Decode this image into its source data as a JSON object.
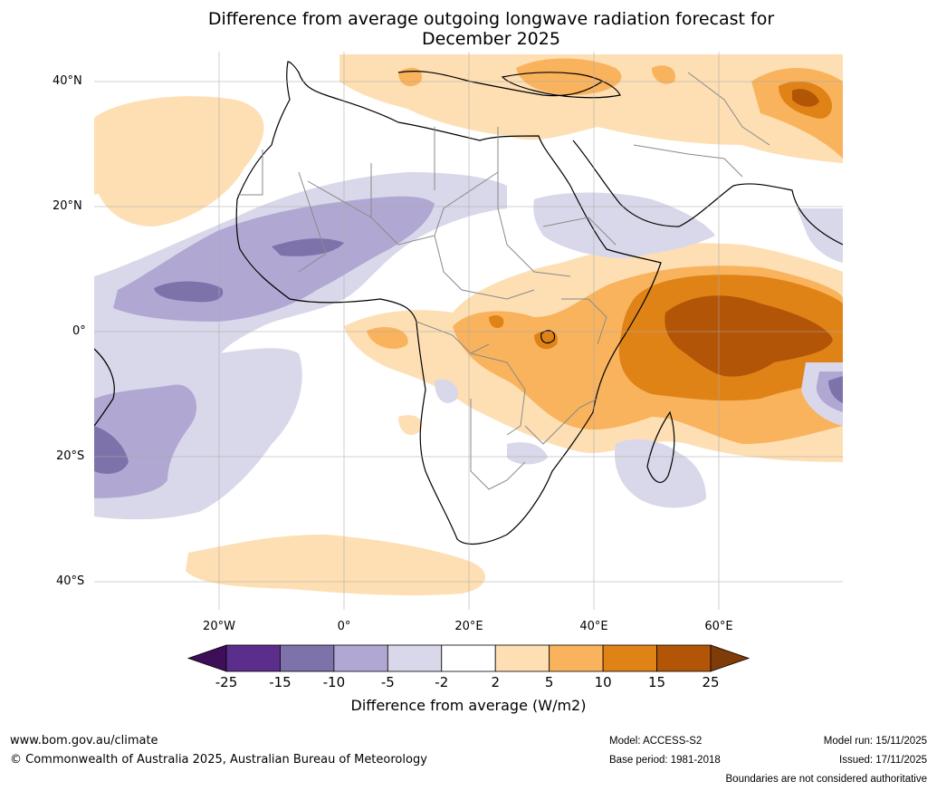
{
  "title_line1": "Difference from average outgoing longwave radiation forecast for",
  "title_line2": "December 2025",
  "lat_labels": [
    "40°N",
    "20°N",
    "0°",
    "20°S",
    "40°S"
  ],
  "lon_labels": [
    "20°W",
    "0°",
    "20°E",
    "40°E",
    "60°E"
  ],
  "colorbar": {
    "ticks": [
      "-25",
      "-15",
      "-10",
      "-5",
      "-2",
      "2",
      "5",
      "10",
      "15",
      "25"
    ],
    "label": "Difference from average (W/m2)",
    "colors": [
      "#3f0e58",
      "#5a2e8a",
      "#7e72ab",
      "#b0a8d3",
      "#d8d8ea",
      "#ffffff",
      "#fddfb3",
      "#f9b35d",
      "#e08317",
      "#b35507",
      "#7f3b08"
    ]
  },
  "footer": {
    "url": "www.bom.gov.au/climate",
    "copyright": "© Commonwealth of Australia 2025, Australian Bureau of Meteorology",
    "model": "Model: ACCESS-S2",
    "base_period": "Base period: 1981-2018",
    "model_run": "Model run: 15/11/2025",
    "issued": "Issued: 17/11/2025",
    "boundaries": "Boundaries are not considered authoritative"
  }
}
